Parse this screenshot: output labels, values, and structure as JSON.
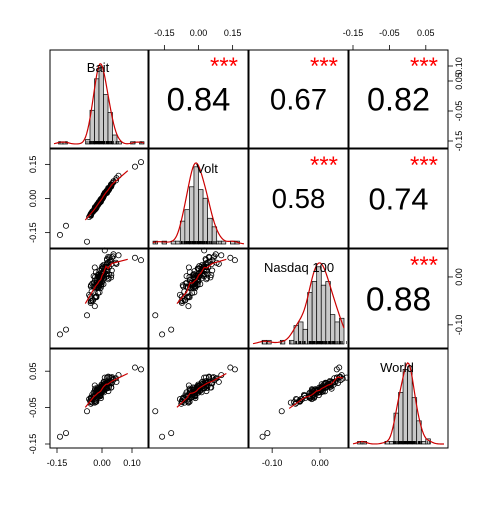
{
  "chart_data": {
    "type": "scatter",
    "variables": [
      "Bait",
      "Volt",
      "Nasdaq 100",
      "World"
    ],
    "panels": {
      "diagonal": "histogram with density curve and rug",
      "lower": "scatter with red smoothing line",
      "upper": "correlation coefficient with significance stars"
    },
    "correlations": [
      {
        "row": 1,
        "col": 2,
        "pair": [
          "Bait",
          "Volt"
        ],
        "value": "0.84",
        "stars": "***"
      },
      {
        "row": 1,
        "col": 3,
        "pair": [
          "Bait",
          "Nasdaq 100"
        ],
        "value": "0.67",
        "stars": "***"
      },
      {
        "row": 1,
        "col": 4,
        "pair": [
          "Bait",
          "World"
        ],
        "value": "0.82",
        "stars": "***"
      },
      {
        "row": 2,
        "col": 3,
        "pair": [
          "Volt",
          "Nasdaq 100"
        ],
        "value": "0.58",
        "stars": "***"
      },
      {
        "row": 2,
        "col": 4,
        "pair": [
          "Volt",
          "World"
        ],
        "value": "0.74",
        "stars": "***"
      },
      {
        "row": 3,
        "col": 4,
        "pair": [
          "Nasdaq 100",
          "World"
        ],
        "value": "0.88",
        "stars": "***"
      }
    ],
    "axes": {
      "top_col2": [
        "-0.15",
        "0.00",
        "0.15"
      ],
      "top_col4": [
        "-0.15",
        "-0.05",
        "0.05"
      ],
      "left_row2": [
        "-0.15",
        "0.00",
        "0.15"
      ],
      "left_row4": [
        "-0.15",
        "-0.05",
        "0.05"
      ],
      "bottom_col1": [
        "-0.15",
        "0.00",
        "0.10"
      ],
      "bottom_col3": [
        "-0.10",
        "0.00"
      ],
      "right_row1": [
        "-0.15",
        "-0.05",
        "0.05",
        "0.10"
      ],
      "right_row3": [
        "-0.10",
        "0.00"
      ]
    },
    "ranges": {
      "Bait": [
        -0.16,
        0.14
      ],
      "Volt": [
        -0.2,
        0.2
      ],
      "Nasdaq 100": [
        -0.14,
        0.05
      ],
      "World": [
        -0.15,
        0.1
      ]
    },
    "colors": {
      "stars": "#ff0000",
      "smooth": "#cc0000",
      "bars": "#c8c8c8",
      "axis": "#000000"
    }
  }
}
